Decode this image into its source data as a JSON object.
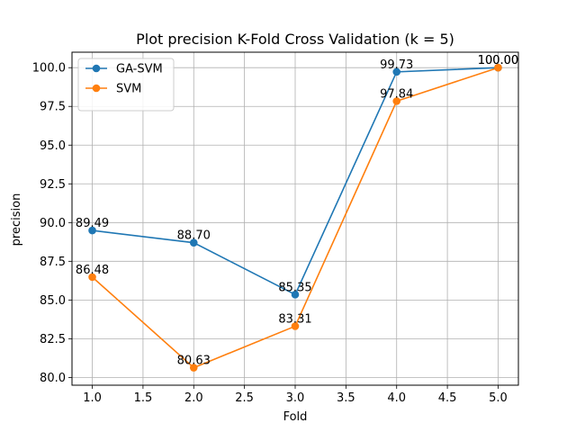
{
  "chart_data": {
    "type": "line",
    "title": "Plot precision K-Fold Cross Validation (k = 5)",
    "xlabel": "Fold",
    "ylabel": "precision",
    "xlim": [
      0.8,
      5.2
    ],
    "ylim": [
      79.5,
      101.0
    ],
    "xticks": [
      1.0,
      1.5,
      2.0,
      2.5,
      3.0,
      3.5,
      4.0,
      4.5,
      5.0
    ],
    "xtick_labels": [
      "1.0",
      "1.5",
      "2.0",
      "2.5",
      "3.0",
      "3.5",
      "4.0",
      "4.5",
      "5.0"
    ],
    "yticks": [
      80.0,
      82.5,
      85.0,
      87.5,
      90.0,
      92.5,
      95.0,
      97.5,
      100.0
    ],
    "ytick_labels": [
      "80.0",
      "82.5",
      "85.0",
      "87.5",
      "90.0",
      "92.5",
      "95.0",
      "97.5",
      "100.0"
    ],
    "grid": true,
    "legend_position": "top-left",
    "x": [
      1,
      2,
      3,
      4,
      5
    ],
    "series": [
      {
        "name": "GA-SVM",
        "color": "#1f77b4",
        "values": [
          89.49,
          88.7,
          85.35,
          99.73,
          100.0
        ],
        "labels": [
          "89.49",
          "88.70",
          "85.35",
          "99.73",
          "100.00"
        ]
      },
      {
        "name": "SVM",
        "color": "#ff7f0e",
        "values": [
          86.48,
          80.63,
          83.31,
          97.84,
          100.0
        ],
        "labels": [
          "86.48",
          "80.63",
          "83.31",
          "97.84",
          "100.00"
        ]
      }
    ]
  }
}
